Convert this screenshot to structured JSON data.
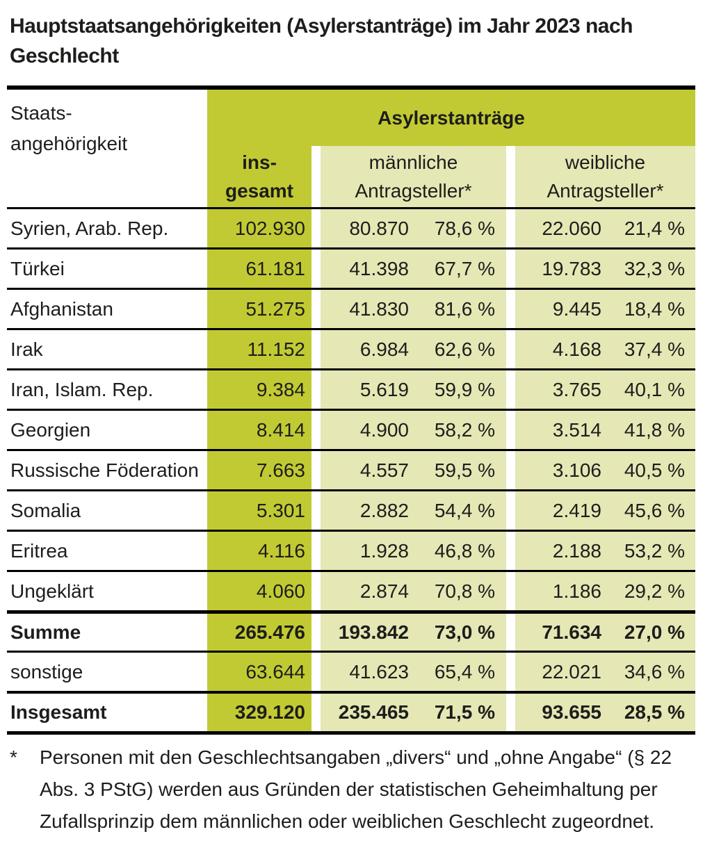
{
  "page": {
    "title_lines": [
      "Hauptstaatsangehörigkeiten (Asylerstanträge) im Jahr 2023 nach",
      "Geschlecht"
    ]
  },
  "colors": {
    "olive_accent": "#c2ca33",
    "light_green": "#e5e7b5",
    "text": "#1d1d1b",
    "border": "#000000"
  },
  "table": {
    "headers": {
      "nationality_line1": "Staats-",
      "nationality_line2": "angehörigkeit",
      "group": "Asylerstanträge",
      "total_line1": "ins-",
      "total_line2": "gesamt",
      "male_line1": "männliche",
      "male_line2": "Antragsteller*",
      "female_line1": "weibliche",
      "female_line2": "Antragsteller*"
    },
    "rows": [
      {
        "country": "Syrien, Arab. Rep.",
        "total": "102.930",
        "male": "80.870",
        "male_pct": "78,6 %",
        "female": "22.060",
        "female_pct": "21,4 %",
        "bold": false,
        "sep": "normal"
      },
      {
        "country": "Türkei",
        "total": "61.181",
        "male": "41.398",
        "male_pct": "67,7 %",
        "female": "19.783",
        "female_pct": "32,3 %",
        "bold": false,
        "sep": "normal"
      },
      {
        "country": "Afghanistan",
        "total": "51.275",
        "male": "41.830",
        "male_pct": "81,6 %",
        "female": "9.445",
        "female_pct": "18,4 %",
        "bold": false,
        "sep": "normal"
      },
      {
        "country": "Irak",
        "total": "11.152",
        "male": "6.984",
        "male_pct": "62,6 %",
        "female": "4.168",
        "female_pct": "37,4 %",
        "bold": false,
        "sep": "normal"
      },
      {
        "country": "Iran, Islam. Rep.",
        "total": "9.384",
        "male": "5.619",
        "male_pct": "59,9 %",
        "female": "3.765",
        "female_pct": "40,1 %",
        "bold": false,
        "sep": "normal"
      },
      {
        "country": "Georgien",
        "total": "8.414",
        "male": "4.900",
        "male_pct": "58,2 %",
        "female": "3.514",
        "female_pct": "41,8 %",
        "bold": false,
        "sep": "normal"
      },
      {
        "country": "Russische Föderation",
        "total": "7.663",
        "male": "4.557",
        "male_pct": "59,5 %",
        "female": "3.106",
        "female_pct": "40,5 %",
        "bold": false,
        "sep": "normal"
      },
      {
        "country": "Somalia",
        "total": "5.301",
        "male": "2.882",
        "male_pct": "54,4 %",
        "female": "2.419",
        "female_pct": "45,6 %",
        "bold": false,
        "sep": "normal"
      },
      {
        "country": "Eritrea",
        "total": "4.116",
        "male": "1.928",
        "male_pct": "46,8 %",
        "female": "2.188",
        "female_pct": "53,2 %",
        "bold": false,
        "sep": "normal"
      },
      {
        "country": "Ungeklärt",
        "total": "4.060",
        "male": "2.874",
        "male_pct": "70,8 %",
        "female": "1.186",
        "female_pct": "29,2 %",
        "bold": false,
        "sep": "normal"
      },
      {
        "country": "Summe",
        "total": "265.476",
        "male": "193.842",
        "male_pct": "73,0 %",
        "female": "71.634",
        "female_pct": "27,0 %",
        "bold": true,
        "sep": "thick"
      },
      {
        "country": "sonstige",
        "total": "63.644",
        "male": "41.623",
        "male_pct": "65,4 %",
        "female": "22.021",
        "female_pct": "34,6 %",
        "bold": false,
        "sep": "normal"
      },
      {
        "country": "Insgesamt",
        "total": "329.120",
        "male": "235.465",
        "male_pct": "71,5 %",
        "female": "93.655",
        "female_pct": "28,5 %",
        "bold": true,
        "sep": "medium"
      }
    ]
  },
  "footnote": {
    "marker": "*",
    "text": "Personen mit den Geschlechtsangaben „divers“ und „ohne Angabe“ (§ 22 Abs. 3 PStG) werden aus Gründen der statistischen Geheimhaltung per Zufallsprinzip dem männlichen oder weiblichen Geschlecht zugeordnet."
  }
}
